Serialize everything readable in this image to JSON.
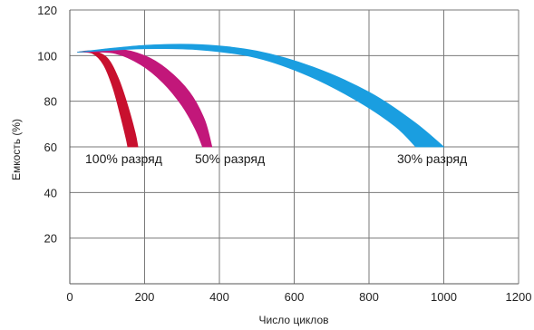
{
  "chart_data": {
    "type": "area",
    "xlabel": "Число циклов",
    "ylabel": "Емкость (%)",
    "xlim": [
      0,
      1200
    ],
    "ylim": [
      0,
      120
    ],
    "x_ticks": [
      "0",
      "200",
      "400",
      "600",
      "800",
      "1000",
      "1200"
    ],
    "y_ticks": [
      "20",
      "40",
      "60",
      "80",
      "100",
      "120"
    ],
    "grid": true,
    "series": [
      {
        "name": "100% разряд",
        "color": "#c8102e",
        "upper": [
          [
            20,
            101.5
          ],
          [
            60,
            102
          ],
          [
            100,
            99
          ],
          [
            130,
            90
          ],
          [
            155,
            78
          ],
          [
            175,
            66
          ],
          [
            182,
            60
          ]
        ],
        "lower": [
          [
            20,
            101.5
          ],
          [
            60,
            101
          ],
          [
            90,
            96
          ],
          [
            115,
            86
          ],
          [
            135,
            74
          ],
          [
            150,
            64
          ],
          [
            155,
            60
          ]
        ]
      },
      {
        "name": "50% разряд",
        "color": "#c2177a",
        "upper": [
          [
            40,
            101.5
          ],
          [
            120,
            103
          ],
          [
            200,
            100
          ],
          [
            260,
            94
          ],
          [
            320,
            84
          ],
          [
            360,
            72
          ],
          [
            380,
            60
          ]
        ],
        "lower": [
          [
            40,
            101.5
          ],
          [
            120,
            101
          ],
          [
            190,
            96
          ],
          [
            250,
            88
          ],
          [
            300,
            78
          ],
          [
            335,
            68
          ],
          [
            355,
            60
          ]
        ]
      },
      {
        "name": "30% разряд",
        "color": "#1a9ee0",
        "upper": [
          [
            20,
            101.5
          ],
          [
            200,
            104.5
          ],
          [
            350,
            104.8
          ],
          [
            500,
            102
          ],
          [
            650,
            95
          ],
          [
            800,
            84
          ],
          [
            920,
            71
          ],
          [
            1000,
            60
          ]
        ],
        "lower": [
          [
            20,
            101.5
          ],
          [
            200,
            103
          ],
          [
            350,
            102.5
          ],
          [
            500,
            99
          ],
          [
            640,
            91
          ],
          [
            770,
            80
          ],
          [
            870,
            69
          ],
          [
            925,
            60
          ]
        ]
      }
    ]
  }
}
